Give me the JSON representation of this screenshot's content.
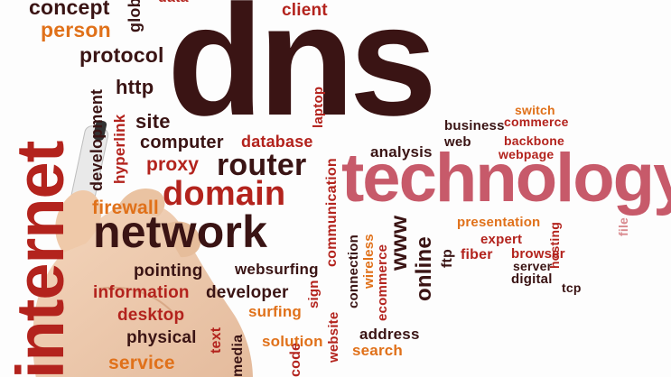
{
  "words": {
    "dns": "dns",
    "technology": "technology",
    "internet": "internet",
    "network": "network",
    "domain": "domain",
    "router": "router",
    "concept": "concept",
    "person": "person",
    "global": "global",
    "data": "data",
    "client": "client",
    "protocol": "protocol",
    "http": "http",
    "development": "development",
    "hyperlink": "hyperlink",
    "site": "site",
    "computer": "computer",
    "database": "database",
    "laptop": "laptop",
    "website_top": "website",
    "proxy": "proxy",
    "firewall": "firewall",
    "communication": "communication",
    "analysis": "analysis",
    "web": "web",
    "business": "business",
    "switch": "switch",
    "commerce": "commerce",
    "backbone": "backbone",
    "webpage": "webpage",
    "presentation": "presentation",
    "expert": "expert",
    "browser": "browser",
    "server": "server",
    "hosting": "hosting",
    "file": "file",
    "digital": "digital",
    "tcp": "tcp",
    "fiber": "fiber",
    "ftp": "ftp",
    "online": "online",
    "www": "www",
    "wireless": "wireless",
    "ecommerce": "ecommerce",
    "connection": "connection",
    "sign": "sign",
    "websurfing": "websurfing",
    "pointing": "pointing",
    "information": "information",
    "developer": "developer",
    "desktop": "desktop",
    "surfing": "surfing",
    "physical": "physical",
    "text": "text",
    "media": "media",
    "solution": "solution",
    "website": "website",
    "address": "address",
    "search": "search",
    "service": "service",
    "code": "code"
  },
  "colors": {
    "dark": "#3a1414",
    "maroon": "#6e1a1a",
    "red": "#b3231d",
    "orange": "#e0711a",
    "pink": "#c75a6a"
  }
}
